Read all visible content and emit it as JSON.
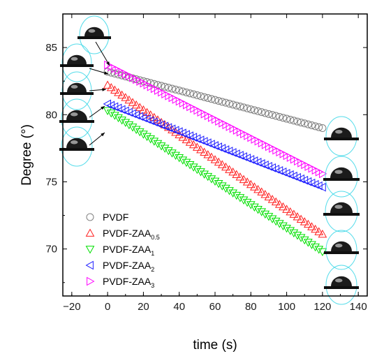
{
  "chart_data": {
    "type": "scatter",
    "title": "",
    "xlabel": "time (s)",
    "ylabel": "Degree (°)",
    "xlim": [
      -25,
      145
    ],
    "ylim": [
      66.5,
      87.5
    ],
    "x_ticks": [
      -20,
      0,
      20,
      40,
      60,
      80,
      100,
      120,
      140
    ],
    "y_ticks": [
      70,
      75,
      80,
      85
    ],
    "grid": false,
    "legend_position": "bottom-left",
    "series": [
      {
        "name": "PVDF",
        "marker": "circle",
        "color": "#808080",
        "x_start": 0,
        "x_end": 120,
        "count": 61,
        "y_start": 83.2,
        "y_end": 79.0
      },
      {
        "name": "PVDF-ZAA",
        "sub": "0.5",
        "marker": "triangle-up",
        "color": "#ff2020",
        "x_start": 0,
        "x_end": 120,
        "count": 61,
        "y_start": 82.2,
        "y_end": 71.1
      },
      {
        "name": "PVDF-ZAA",
        "sub": "1",
        "marker": "triangle-down",
        "color": "#00e000",
        "x_start": 0,
        "x_end": 120,
        "count": 61,
        "y_start": 80.3,
        "y_end": 69.8
      },
      {
        "name": "PVDF-ZAA",
        "sub": "2",
        "marker": "triangle-left",
        "color": "#2020ff",
        "x_start": 0,
        "x_end": 120,
        "count": 61,
        "y_start": 80.8,
        "y_end": 74.6
      },
      {
        "name": "PVDF-ZAA",
        "sub": "3",
        "marker": "triangle-right",
        "color": "#ff00ff",
        "x_start": 0,
        "x_end": 120,
        "count": 61,
        "y_start": 83.7,
        "y_end": 75.6
      }
    ],
    "droplet_images": {
      "left_count": 5,
      "right_count": 5
    }
  }
}
